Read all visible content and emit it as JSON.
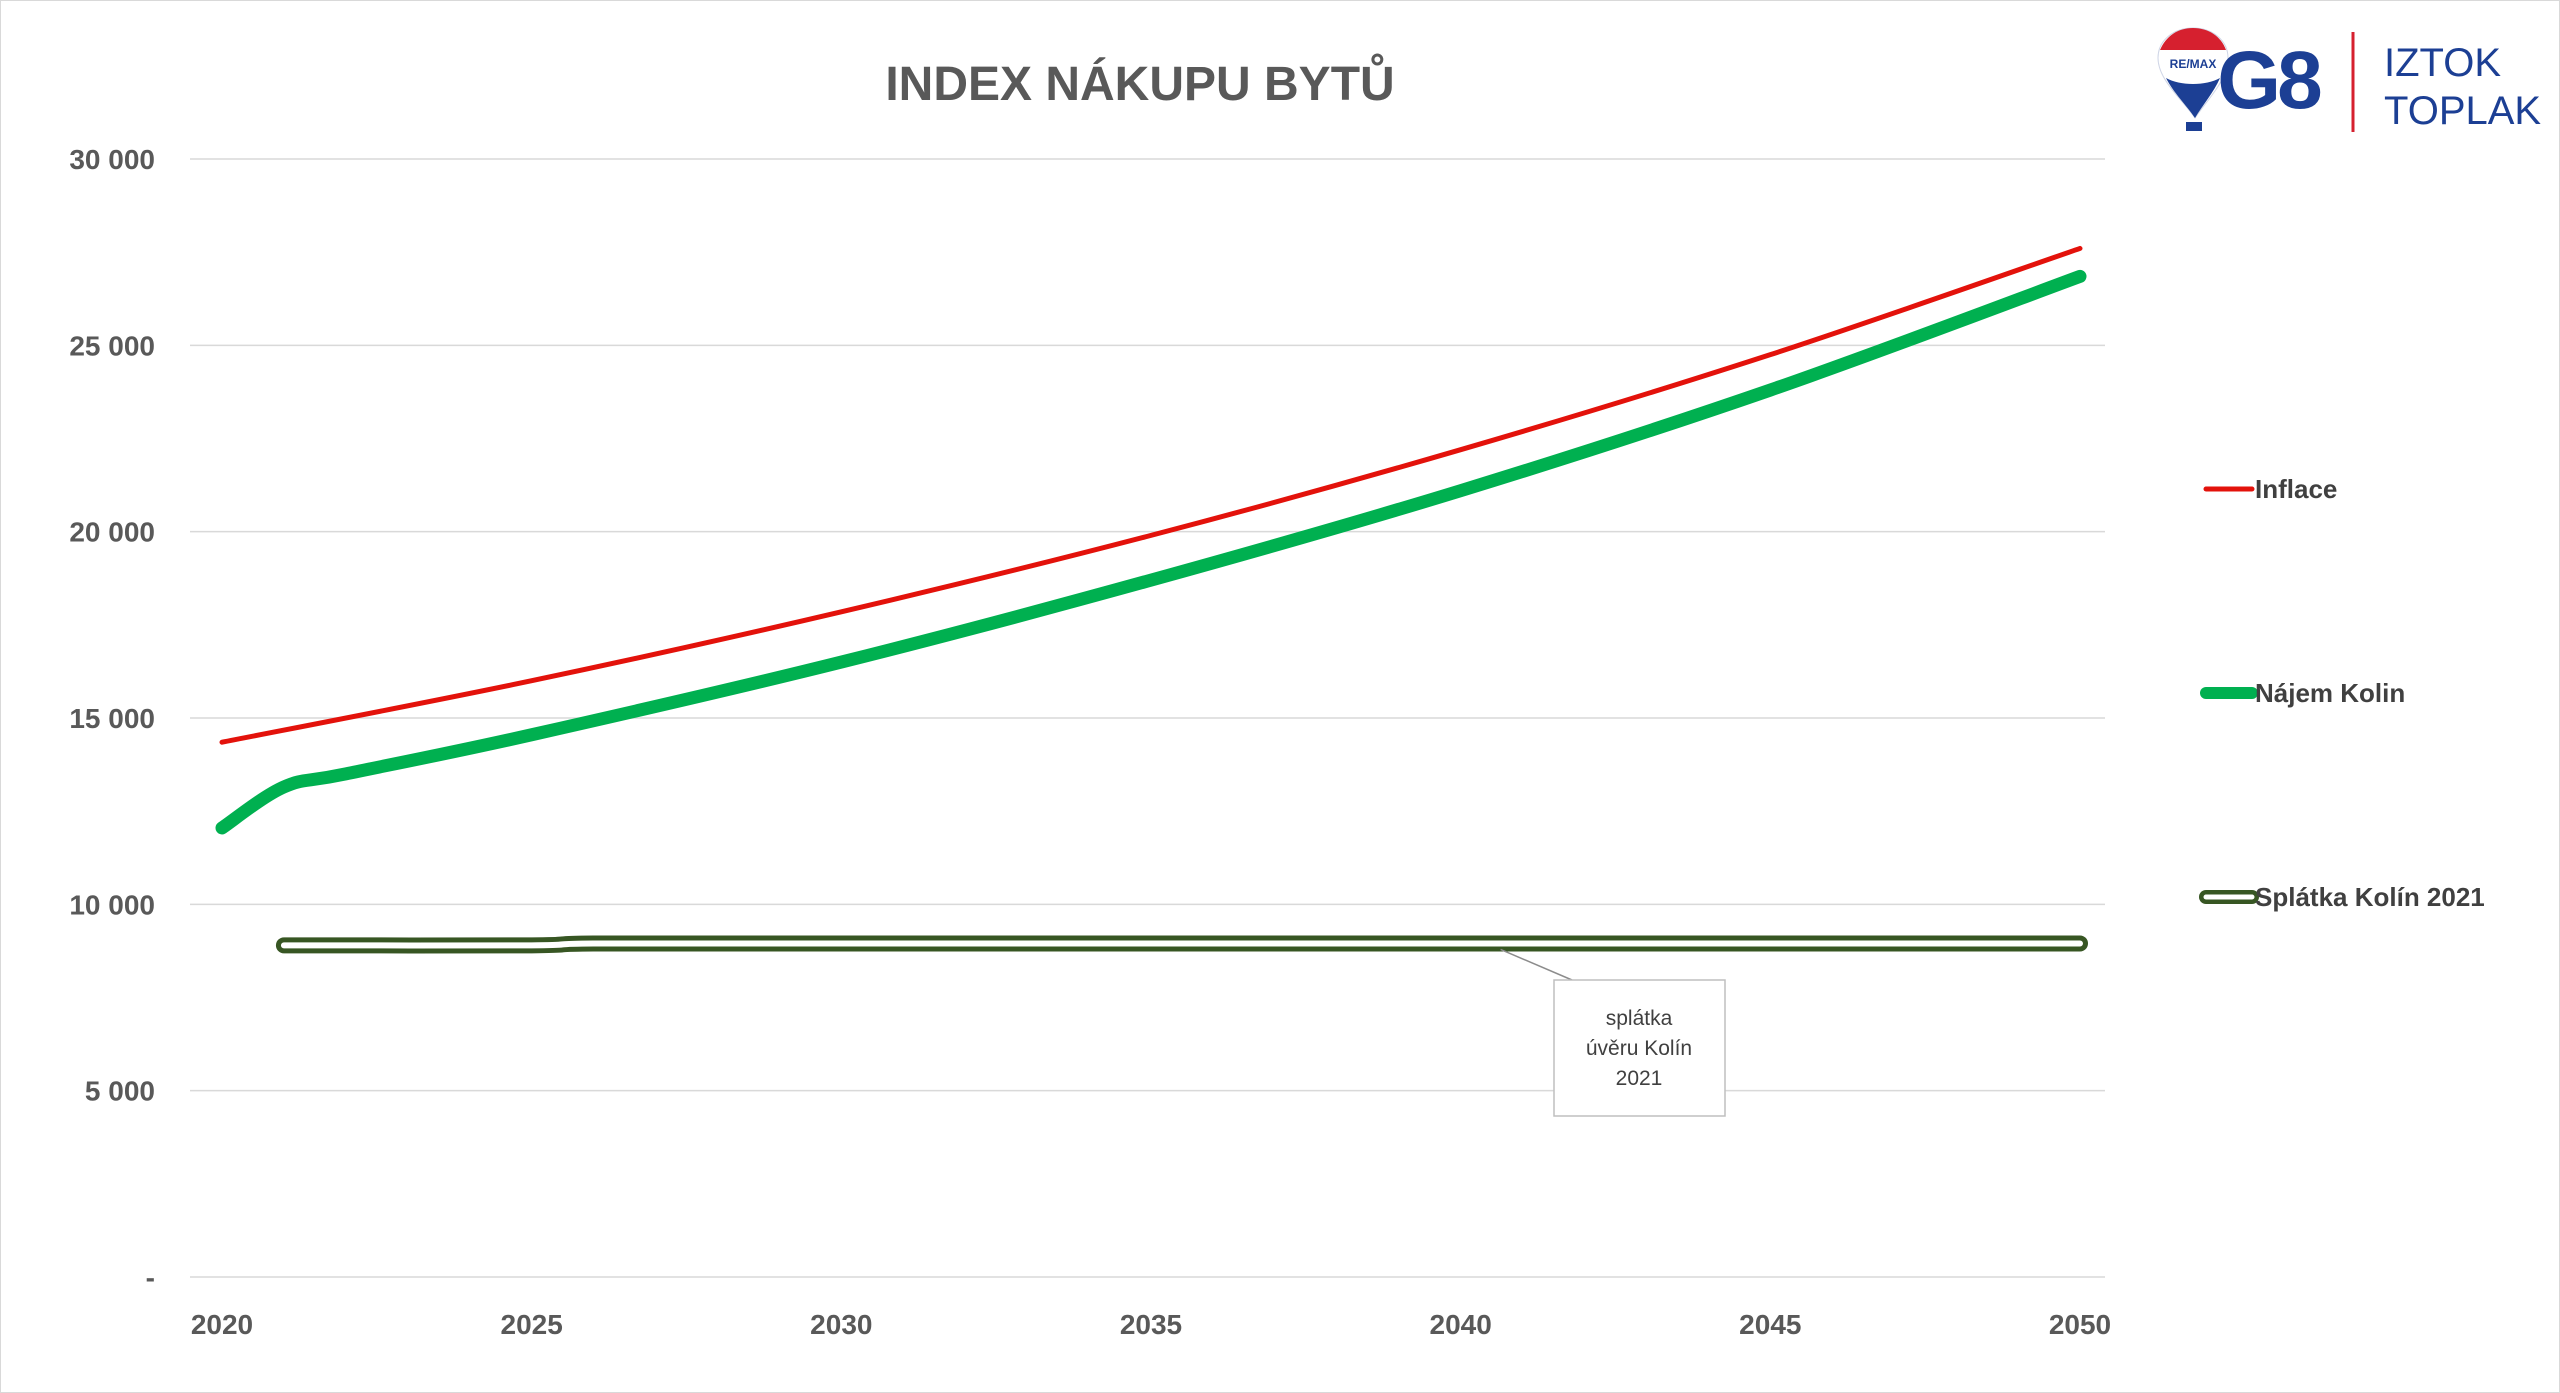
{
  "chart_data": {
    "type": "line",
    "title": "INDEX NÁKUPU BYTŮ",
    "xlabel": "",
    "ylabel": "",
    "xlim": [
      2020,
      2050
    ],
    "ylim": [
      0,
      30000
    ],
    "x_ticks": [
      2020,
      2025,
      2030,
      2035,
      2040,
      2045,
      2050
    ],
    "x_tick_labels": [
      "2020",
      "2025",
      "2030",
      "2035",
      "2040",
      "2045",
      "2050"
    ],
    "y_ticks": [
      0,
      5000,
      10000,
      15000,
      20000,
      25000,
      30000
    ],
    "y_tick_labels": [
      "-",
      "5 000",
      "10 000",
      "15 000",
      "20 000",
      "25 000",
      "30 000"
    ],
    "grid": "horizontal",
    "legend_position": "right",
    "series": [
      {
        "name": "Inflace",
        "color": "#e3120b",
        "x": [
          2020,
          2025,
          2030,
          2035,
          2040,
          2045,
          2050
        ],
        "y": [
          14350,
          16000,
          17850,
          19900,
          22200,
          24750,
          27600
        ]
      },
      {
        "name": "Nájem Kolin",
        "color": "#00b050",
        "x": [
          2020,
          2021,
          2022,
          2025,
          2030,
          2035,
          2040,
          2045,
          2050
        ],
        "y": [
          12050,
          13150,
          13500,
          14550,
          16500,
          18700,
          21100,
          23800,
          26850
        ]
      },
      {
        "name": "Splátka Kolín 2021",
        "color": "#375623",
        "x": [
          2021,
          2025,
          2026,
          2030,
          2035,
          2040,
          2045,
          2050
        ],
        "y": [
          8900,
          8900,
          8950,
          8950,
          8950,
          8950,
          8950,
          8950
        ]
      }
    ],
    "annotations": [
      {
        "text_lines": [
          "splátka",
          "úvěru Kolín",
          "2021"
        ],
        "x": 2041,
        "y": 8950
      }
    ]
  },
  "brand": {
    "balloon_text": "RE/MAX",
    "logo_mark": "G8",
    "name_line1": "IZTOK",
    "name_line2": "TOPLAK",
    "color_blue": "#1c3f94",
    "color_red": "#d6202f"
  }
}
